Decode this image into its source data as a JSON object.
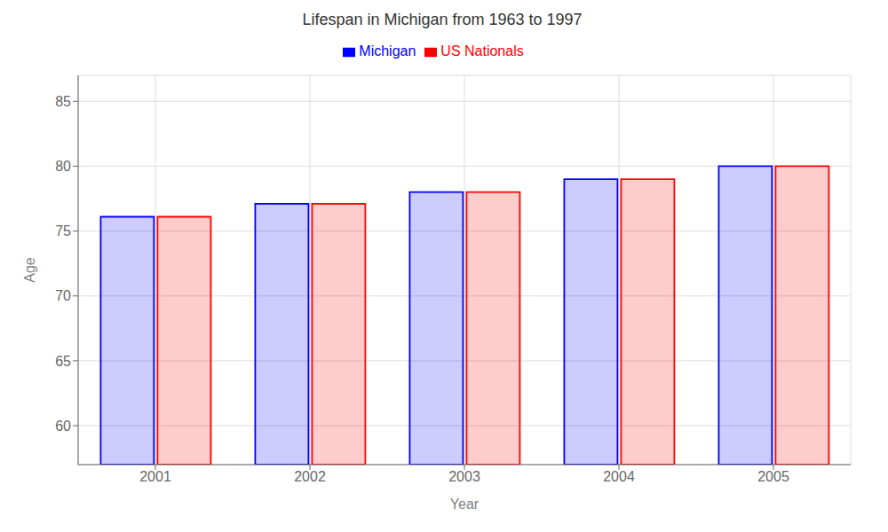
{
  "chart_data": {
    "type": "bar",
    "title": "Lifespan in Michigan from 1963 to 1997",
    "xlabel": "Year",
    "ylabel": "Age",
    "categories": [
      "2001",
      "2002",
      "2003",
      "2004",
      "2005"
    ],
    "series": [
      {
        "name": "Michigan",
        "color": "#0000ff",
        "values": [
          76.1,
          77.1,
          78.0,
          79.0,
          80.0
        ]
      },
      {
        "name": "US Nationals",
        "color": "#ff0000",
        "values": [
          76.1,
          77.1,
          78.0,
          79.0,
          80.0
        ]
      }
    ],
    "ylim": [
      57,
      87
    ],
    "yticks": [
      60,
      65,
      70,
      75,
      80,
      85
    ],
    "grid": true,
    "legend": "top"
  }
}
